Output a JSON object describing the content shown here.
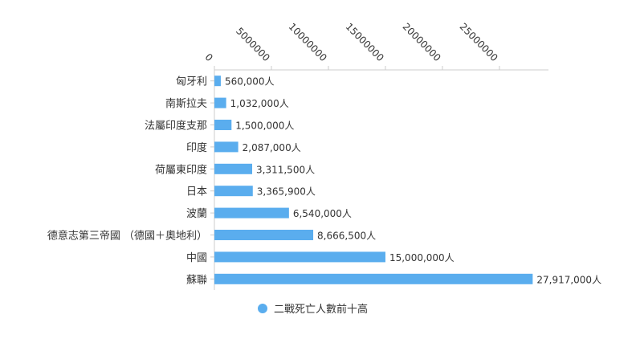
{
  "chart_data": {
    "type": "bar",
    "orientation": "horizontal",
    "categories": [
      "匈牙利",
      "南斯拉夫",
      "法屬印度支那",
      "印度",
      "荷屬東印度",
      "日本",
      "波蘭",
      "德意志第三帝國 （德國＋奧地利）",
      "中國",
      "蘇聯"
    ],
    "series": [
      {
        "name": "二戰死亡人數前十高",
        "values": [
          560000,
          1032000,
          1500000,
          2087000,
          3311500,
          3365900,
          6540000,
          8666500,
          15000000,
          27917000
        ],
        "labels": [
          "560,000人",
          "1,032,000人",
          "1,500,000人",
          "2,087,000人",
          "3,311,500人",
          "3,365,900人",
          "6,540,000人",
          "8,666,500人",
          "15,000,000人",
          "27,917,000人"
        ],
        "color": "#5aadee"
      }
    ],
    "xticks": [
      0,
      5000000,
      10000000,
      15000000,
      20000000,
      25000000
    ],
    "xtick_labels": [
      "0",
      "5000000",
      "10000000",
      "15000000",
      "20000000",
      "25000000"
    ],
    "xlim": [
      0,
      29300000
    ],
    "x_axis_position": "top",
    "grid": false,
    "legend_position": "bottom-center"
  }
}
